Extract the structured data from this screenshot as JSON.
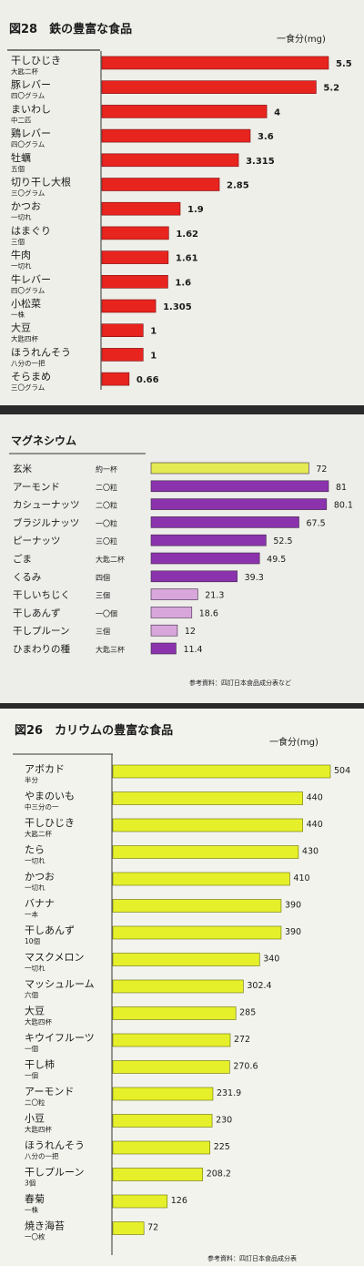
{
  "chart_data": [
    {
      "type": "bar",
      "title": "図28　鉄の豊富な食品",
      "unit": "一食分(mg)",
      "categories": [
        {
          "name": "干しひじき",
          "portion": "大匙二杯",
          "value": 5.5,
          "label": "5.5"
        },
        {
          "name": "豚レバー",
          "portion": "四〇グラム",
          "value": 5.2,
          "label": "5.2"
        },
        {
          "name": "まいわし",
          "portion": "中二匹",
          "value": 4,
          "label": "4"
        },
        {
          "name": "鶏レバー",
          "portion": "四〇グラム",
          "value": 3.6,
          "label": "3.6"
        },
        {
          "name": "牡蠣",
          "portion": "五個",
          "value": 3.315,
          "label": "3.315"
        },
        {
          "name": "切り干し大根",
          "portion": "三〇グラム",
          "value": 2.85,
          "label": "2.85"
        },
        {
          "name": "かつお",
          "portion": "一切れ",
          "value": 1.9,
          "label": "1.9"
        },
        {
          "name": "はまぐり",
          "portion": "三個",
          "value": 1.62,
          "label": "1.62"
        },
        {
          "name": "牛肉",
          "portion": "一切れ",
          "value": 1.61,
          "label": "1.61"
        },
        {
          "name": "牛レバー",
          "portion": "四〇グラム",
          "value": 1.6,
          "label": "1.6"
        },
        {
          "name": "小松菜",
          "portion": "一株",
          "value": 1.305,
          "label": "1.305"
        },
        {
          "name": "大豆",
          "portion": "大匙四杯",
          "value": 1,
          "label": "1"
        },
        {
          "name": "ほうれんそう",
          "portion": "八分の一把",
          "value": 1,
          "label": "1"
        },
        {
          "name": "そらまめ",
          "portion": "三〇グラム",
          "value": 0.66,
          "label": "0.66"
        }
      ],
      "colors": {
        "bar": "#e8241f"
      }
    },
    {
      "type": "bar",
      "title": "マグネシウム",
      "source": "参考資料：四訂日本食品成分表など",
      "categories": [
        {
          "name": "玄米",
          "portion": "約一杯",
          "value": 72,
          "label": "72",
          "color": "#e3ea52"
        },
        {
          "name": "アーモンド",
          "portion": "二〇粒",
          "value": 81,
          "label": "81",
          "color": "#8b33ad"
        },
        {
          "name": "カシューナッツ",
          "portion": "二〇粒",
          "value": 80.1,
          "label": "80.1",
          "color": "#8b33ad"
        },
        {
          "name": "ブラジルナッツ",
          "portion": "一〇粒",
          "value": 67.5,
          "label": "67.5",
          "color": "#8b33ad"
        },
        {
          "name": "ピーナッツ",
          "portion": "三〇粒",
          "value": 52.5,
          "label": "52.5",
          "color": "#8b33ad"
        },
        {
          "name": "ごま",
          "portion": "大匙二杯",
          "value": 49.5,
          "label": "49.5",
          "color": "#8b33ad"
        },
        {
          "name": "くるみ",
          "portion": "四個",
          "value": 39.3,
          "label": "39.3",
          "color": "#8b33ad"
        },
        {
          "name": "干しいちじく",
          "portion": "三個",
          "value": 21.3,
          "label": "21.3",
          "color": "#d9a6dc"
        },
        {
          "name": "干しあんず",
          "portion": "一〇個",
          "value": 18.6,
          "label": "18.6",
          "color": "#d9a6dc"
        },
        {
          "name": "干しプルーン",
          "portion": "三個",
          "value": 12,
          "label": "12",
          "color": "#d9a6dc"
        },
        {
          "name": "ひまわりの種",
          "portion": "大匙三杯",
          "value": 11.4,
          "label": "11.4",
          "color": "#8b33ad"
        }
      ]
    },
    {
      "type": "bar",
      "title": "図26　カリウムの豊富な食品",
      "unit": "一食分(mg)",
      "source": "参考資料：四訂日本食品成分表",
      "categories": [
        {
          "name": "アボカド",
          "portion": "半分",
          "value": 504,
          "label": "504"
        },
        {
          "name": "やまのいも",
          "portion": "中三分の一",
          "value": 440,
          "label": "440"
        },
        {
          "name": "干しひじき",
          "portion": "大匙二杯",
          "value": 440,
          "label": "440"
        },
        {
          "name": "たら",
          "portion": "一切れ",
          "value": 430,
          "label": "430"
        },
        {
          "name": "かつお",
          "portion": "一切れ",
          "value": 410,
          "label": "410"
        },
        {
          "name": "バナナ",
          "portion": "一本",
          "value": 390,
          "label": "390"
        },
        {
          "name": "干しあんず",
          "portion": "10個",
          "value": 390,
          "label": "390"
        },
        {
          "name": "マスクメロン",
          "portion": "一切れ",
          "value": 340,
          "label": "340"
        },
        {
          "name": "マッシュルーム",
          "portion": "六個",
          "value": 302.4,
          "label": "302.4"
        },
        {
          "name": "大豆",
          "portion": "大匙四杯",
          "value": 285,
          "label": "285"
        },
        {
          "name": "キウイフルーツ",
          "portion": "一個",
          "value": 272,
          "label": "272"
        },
        {
          "name": "干し柿",
          "portion": "一個",
          "value": 270.6,
          "label": "270.6"
        },
        {
          "name": "アーモンド",
          "portion": "二〇粒",
          "value": 231.9,
          "label": "231.9"
        },
        {
          "name": "小豆",
          "portion": "大匙四杯",
          "value": 230,
          "label": "230"
        },
        {
          "name": "ほうれんそう",
          "portion": "八分の一把",
          "value": 225,
          "label": "225"
        },
        {
          "name": "干しプルーン",
          "portion": "3個",
          "value": 208.2,
          "label": "208.2"
        },
        {
          "name": "春菊",
          "portion": "一株",
          "value": 126,
          "label": "126"
        },
        {
          "name": "焼き海苔",
          "portion": "一〇枚",
          "value": 72,
          "label": "72"
        }
      ],
      "colors": {
        "bar": "#e6f02a"
      }
    }
  ]
}
